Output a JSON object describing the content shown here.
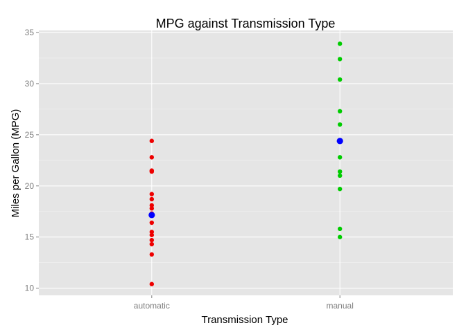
{
  "chart_data": {
    "type": "scatter",
    "title": "MPG against Transmission Type",
    "xlabel": "Transmission Type",
    "ylabel": "Miles per Gallon (MPG)",
    "categories": [
      "automatic",
      "manual"
    ],
    "ylim": [
      9.3,
      35.2
    ],
    "yticks": [
      10,
      15,
      20,
      25,
      30,
      35
    ],
    "grid": true,
    "legend": "none",
    "series": [
      {
        "category": "automatic",
        "color": "#ee0000",
        "values": [
          24.4,
          22.8,
          21.5,
          21.4,
          19.2,
          18.7,
          18.1,
          17.8,
          17.3,
          16.4,
          15.5,
          15.2,
          14.7,
          14.3,
          13.3,
          10.4
        ]
      },
      {
        "category": "manual",
        "color": "#00cc00",
        "values": [
          33.9,
          32.4,
          30.4,
          27.3,
          26.0,
          22.8,
          21.4,
          21.0,
          19.7,
          15.8,
          15.0
        ]
      }
    ],
    "means": {
      "color": "#0000ff",
      "values": [
        17.15,
        24.39
      ]
    }
  }
}
